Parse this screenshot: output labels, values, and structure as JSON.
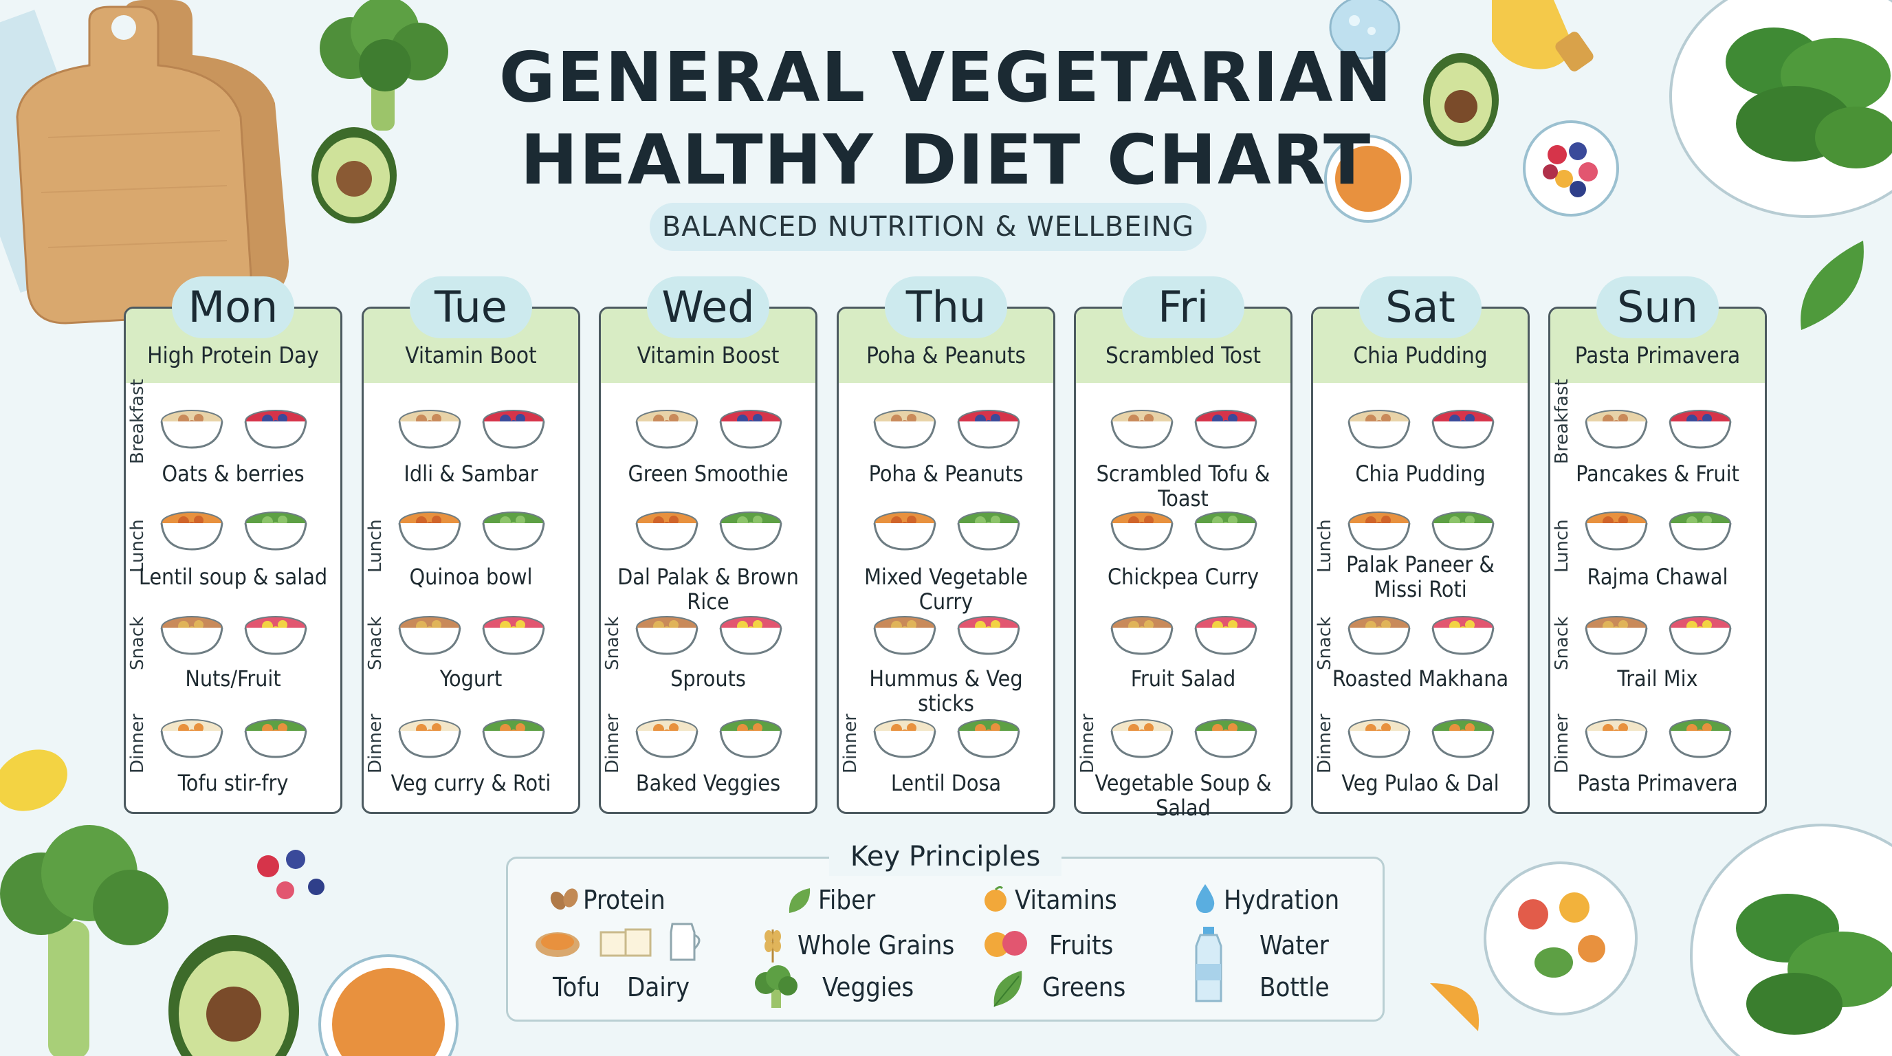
{
  "title": {
    "line1": "GENERAL VEGETARIAN",
    "line2": "HEALTHY DIET CHART"
  },
  "subtitle": "BALANCED NUTRITION & WELLBEING",
  "meal_labels": [
    "Breakfast",
    "Lunch",
    "Snack",
    "Dinner"
  ],
  "days": [
    {
      "name": "Mon",
      "theme": "High Protein Day",
      "side_labels": [
        true,
        true,
        true,
        true
      ],
      "meals": [
        "Oats & berries",
        "Lentil soup & salad",
        "Nuts/Fruit",
        "Tofu stir-fry"
      ]
    },
    {
      "name": "Tue",
      "theme": "Vitamin Boot",
      "side_labels": [
        false,
        true,
        true,
        true
      ],
      "meals": [
        "Idli & Sambar",
        "Quinoa bowl",
        "Yogurt",
        "Veg curry & Roti"
      ]
    },
    {
      "name": "Wed",
      "theme": "Vitamin Boost",
      "side_labels": [
        false,
        false,
        true,
        true
      ],
      "meals": [
        "Green Smoothie",
        "Dal Palak & Brown Rice",
        "Sprouts",
        "Baked Veggies"
      ]
    },
    {
      "name": "Thu",
      "theme": "Poha & Peanuts",
      "side_labels": [
        false,
        false,
        false,
        true
      ],
      "meals": [
        "Poha & Peanuts",
        "Mixed Vegetable Curry",
        "Hummus & Veg sticks",
        "Lentil Dosa"
      ]
    },
    {
      "name": "Fri",
      "theme": "Scrambled Tost",
      "side_labels": [
        false,
        false,
        false,
        true
      ],
      "meals": [
        "Scrambled Tofu & Toast",
        "Chickpea Curry",
        "Fruit Salad",
        "Vegetable Soup & Salad"
      ]
    },
    {
      "name": "Sat",
      "theme": "Chia Pudding",
      "side_labels": [
        false,
        true,
        true,
        true
      ],
      "meals": [
        "Chia Pudding",
        "Palak Paneer & Missi Roti",
        "Roasted Makhana",
        "Veg Pulao & Dal"
      ]
    },
    {
      "name": "Sun",
      "theme": "Pasta Primavera",
      "side_labels": [
        true,
        true,
        true,
        true
      ],
      "meals": [
        "Pancakes & Fruit",
        "Rajma Chawal",
        "Trail Mix",
        "Pasta Primavera"
      ]
    }
  ],
  "key_principles": {
    "title": "Key Principles",
    "protein": "Protein",
    "tofu": "Tofu",
    "dairy": "Dairy",
    "fiber": "Fiber",
    "whole_grains": "Whole Grains",
    "veggies": "Veggies",
    "vitamins": "Vitamins",
    "fruits": "Fruits",
    "greens": "Greens",
    "hydration": "Hydration",
    "water": "Water",
    "bottle": "Bottle"
  },
  "colors": {
    "day_band": "#d8ecc4",
    "day_pill": "#cdeaee",
    "card_border": "#4c5a60",
    "background": "#eef6f8"
  },
  "decorations": [
    "cutting-board-icon",
    "broccoli-icon",
    "avocado-icon",
    "spinach-icon",
    "berries-icon",
    "lentils-icon",
    "lemon-icon",
    "orange-juice-icon"
  ]
}
